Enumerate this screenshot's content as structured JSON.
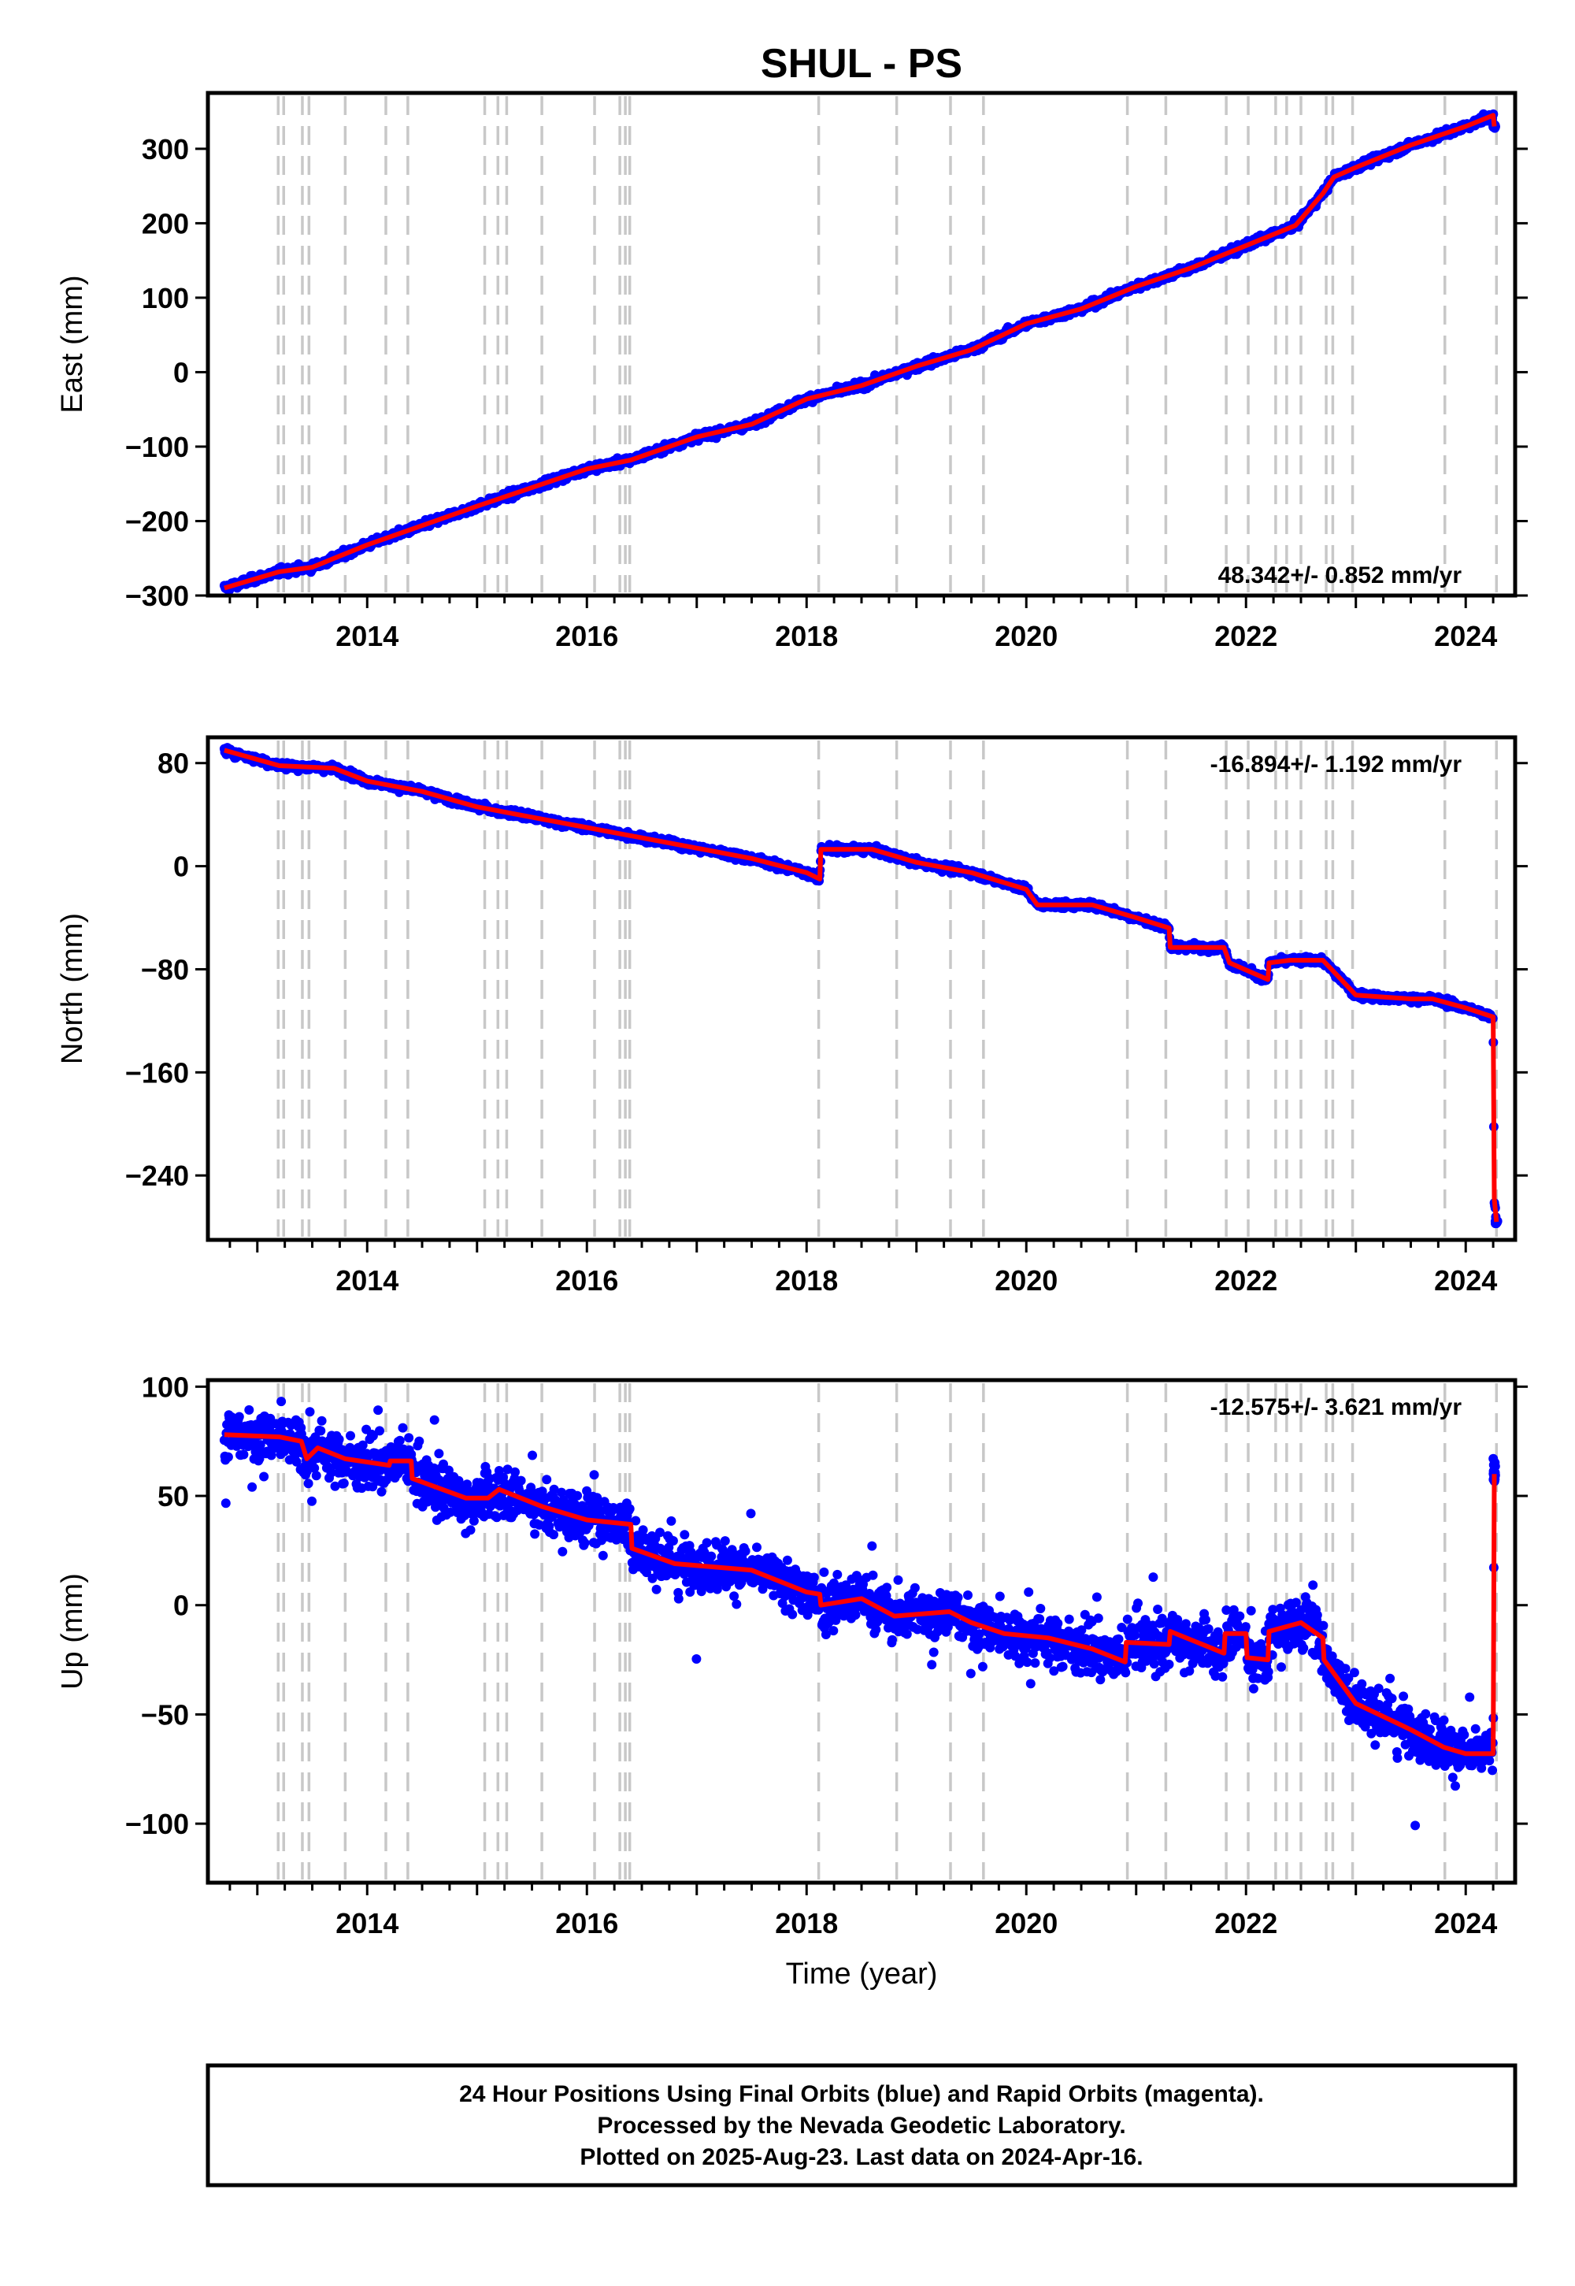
{
  "title": "SHUL - PS",
  "footer": {
    "line1": "24 Hour Positions Using Final Orbits (blue) and Rapid Orbits (magenta).",
    "line2": "Processed by the Nevada Geodetic Laboratory.",
    "line3": "Plotted on 2025-Aug-23. Last data on 2024-Apr-16."
  },
  "chart_data": [
    {
      "type": "scatter",
      "component": "east",
      "ylabel": "East (mm)",
      "xlabel": "",
      "xlim": [
        2012.55,
        2024.45
      ],
      "ylim": [
        -300,
        375
      ],
      "x_ticks": [
        "2014",
        "2016",
        "2018",
        "2020",
        "2022",
        "2024"
      ],
      "y_ticks": [
        {
          "value": 300,
          "label": "300"
        },
        {
          "value": 200,
          "label": "200"
        },
        {
          "value": 100,
          "label": "100"
        },
        {
          "value": 0,
          "label": "0"
        },
        {
          "value": -100,
          "label": "−100"
        },
        {
          "value": -200,
          "label": "−200"
        },
        {
          "value": -300,
          "label": "−300"
        }
      ],
      "rate_label": "48.342+/- 0.852 mm/yr",
      "rate_position": "bottom-right",
      "noise_mm": 3.5,
      "model_line": {
        "name": "model",
        "color": "#ff0000",
        "points": [
          [
            2012.7,
            -290
          ],
          [
            2013.2,
            -268
          ],
          [
            2013.5,
            -262
          ],
          [
            2013.7,
            -250
          ],
          [
            2014.0,
            -232
          ],
          [
            2015.0,
            -180
          ],
          [
            2016.0,
            -130
          ],
          [
            2016.4,
            -118
          ],
          [
            2017.0,
            -87
          ],
          [
            2017.5,
            -70
          ],
          [
            2018.0,
            -36
          ],
          [
            2018.5,
            -18
          ],
          [
            2019.0,
            8
          ],
          [
            2019.5,
            30
          ],
          [
            2020.0,
            65
          ],
          [
            2020.5,
            85
          ],
          [
            2021.0,
            115
          ],
          [
            2021.5,
            140
          ],
          [
            2022.0,
            170
          ],
          [
            2022.45,
            197
          ],
          [
            2022.7,
            240
          ],
          [
            2022.8,
            262
          ],
          [
            2023.0,
            275
          ],
          [
            2023.5,
            305
          ],
          [
            2024.0,
            330
          ],
          [
            2024.25,
            345
          ],
          [
            2024.26,
            330
          ]
        ]
      },
      "grid": false
    },
    {
      "type": "scatter",
      "component": "north",
      "ylabel": "North (mm)",
      "xlabel": "",
      "xlim": [
        2012.55,
        2024.45
      ],
      "ylim": [
        -290,
        100
      ],
      "x_ticks": [
        "2014",
        "2016",
        "2018",
        "2020",
        "2022",
        "2024"
      ],
      "y_ticks": [
        {
          "value": 80,
          "label": "80"
        },
        {
          "value": 0,
          "label": "0"
        },
        {
          "value": -80,
          "label": "−80"
        },
        {
          "value": -160,
          "label": "−160"
        },
        {
          "value": -240,
          "label": "−240"
        }
      ],
      "rate_label": "-16.894+/- 1.192 mm/yr",
      "rate_position": "top-right",
      "noise_mm": 2,
      "model_line": {
        "name": "model",
        "color": "#ff0000",
        "points": [
          [
            2012.7,
            90
          ],
          [
            2013.2,
            78
          ],
          [
            2013.7,
            76
          ],
          [
            2014.0,
            66
          ],
          [
            2014.5,
            58
          ],
          [
            2015.0,
            46
          ],
          [
            2015.5,
            38
          ],
          [
            2016.0,
            30
          ],
          [
            2016.5,
            22
          ],
          [
            2017.0,
            14
          ],
          [
            2017.5,
            6
          ],
          [
            2018.0,
            -5
          ],
          [
            2018.12,
            -10
          ],
          [
            2018.13,
            13
          ],
          [
            2018.6,
            13
          ],
          [
            2019.0,
            3
          ],
          [
            2019.5,
            -5
          ],
          [
            2020.0,
            -18
          ],
          [
            2020.1,
            -30
          ],
          [
            2020.6,
            -30
          ],
          [
            2021.0,
            -40
          ],
          [
            2021.3,
            -48
          ],
          [
            2021.31,
            -63
          ],
          [
            2021.8,
            -63
          ],
          [
            2021.85,
            -75
          ],
          [
            2022.2,
            -88
          ],
          [
            2022.21,
            -75
          ],
          [
            2022.4,
            -73
          ],
          [
            2022.7,
            -73
          ],
          [
            2023.0,
            -100
          ],
          [
            2023.5,
            -103
          ],
          [
            2023.7,
            -103
          ],
          [
            2024.0,
            -110
          ],
          [
            2024.25,
            -117
          ],
          [
            2024.26,
            -258
          ],
          [
            2024.28,
            -276
          ]
        ]
      },
      "grid": false
    },
    {
      "type": "scatter",
      "component": "up",
      "ylabel": "Up (mm)",
      "xlabel": "Time (year)",
      "xlim": [
        2012.55,
        2024.45
      ],
      "ylim": [
        -127,
        103
      ],
      "x_ticks": [
        "2014",
        "2016",
        "2018",
        "2020",
        "2022",
        "2024"
      ],
      "y_ticks": [
        {
          "value": 100,
          "label": "100"
        },
        {
          "value": 50,
          "label": "50"
        },
        {
          "value": 0,
          "label": "0"
        },
        {
          "value": -50,
          "label": "−50"
        },
        {
          "value": -100,
          "label": "−100"
        }
      ],
      "rate_label": "-12.575+/- 3.621 mm/yr",
      "rate_position": "top-right",
      "noise_mm": 8,
      "model_line": {
        "name": "model",
        "color": "#ff0000",
        "points": [
          [
            2012.7,
            78
          ],
          [
            2013.2,
            77
          ],
          [
            2013.4,
            75
          ],
          [
            2013.45,
            67
          ],
          [
            2013.55,
            72
          ],
          [
            2013.8,
            67
          ],
          [
            2014.2,
            64
          ],
          [
            2014.21,
            66
          ],
          [
            2014.4,
            66
          ],
          [
            2014.41,
            58
          ],
          [
            2014.9,
            49
          ],
          [
            2015.1,
            49
          ],
          [
            2015.2,
            53
          ],
          [
            2015.6,
            45
          ],
          [
            2016.0,
            39
          ],
          [
            2016.4,
            37
          ],
          [
            2016.41,
            26
          ],
          [
            2016.8,
            19
          ],
          [
            2017.5,
            16
          ],
          [
            2018.0,
            6
          ],
          [
            2018.12,
            5
          ],
          [
            2018.13,
            0
          ],
          [
            2018.5,
            3
          ],
          [
            2018.8,
            -5
          ],
          [
            2019.3,
            -3
          ],
          [
            2019.5,
            -8
          ],
          [
            2019.8,
            -13
          ],
          [
            2020.2,
            -15
          ],
          [
            2020.6,
            -20
          ],
          [
            2020.9,
            -26
          ],
          [
            2020.91,
            -17
          ],
          [
            2021.3,
            -18
          ],
          [
            2021.31,
            -12
          ],
          [
            2021.8,
            -22
          ],
          [
            2021.81,
            -13
          ],
          [
            2022.0,
            -13
          ],
          [
            2022.01,
            -24
          ],
          [
            2022.2,
            -25
          ],
          [
            2022.21,
            -12
          ],
          [
            2022.5,
            -8
          ],
          [
            2022.7,
            -15
          ],
          [
            2022.71,
            -25
          ],
          [
            2023.0,
            -45
          ],
          [
            2023.5,
            -57
          ],
          [
            2023.8,
            -65
          ],
          [
            2024.0,
            -68
          ],
          [
            2024.25,
            -68
          ],
          [
            2024.26,
            60
          ]
        ]
      },
      "grid": false
    }
  ],
  "equipment_change_lines": [
    2013.19,
    2013.24,
    2013.41,
    2013.47,
    2013.8,
    2014.17,
    2014.37,
    2015.07,
    2015.19,
    2015.27,
    2015.59,
    2016.07,
    2016.3,
    2016.35,
    2016.39,
    2018.11,
    2018.82,
    2019.31,
    2019.61,
    2020.92,
    2021.27,
    2021.82,
    2022.02,
    2022.27,
    2022.37,
    2022.5,
    2022.73,
    2022.79,
    2022.97,
    2023.81,
    2024.28
  ],
  "colors": {
    "data_points": "#0000ff",
    "model_line": "#ff0000",
    "dashed_lines": "#c8c8c8",
    "frame": "#000000"
  }
}
